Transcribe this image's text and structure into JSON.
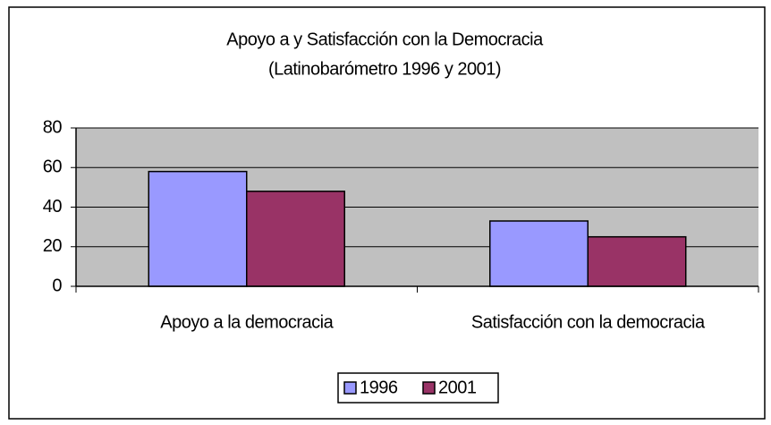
{
  "chart_data": {
    "type": "bar",
    "title": "Apoyo a y Satisfacción con la Democracia",
    "subtitle": "(Latinobarómetro 1996 y 2001)",
    "categories": [
      "Apoyo a la democracia",
      "Satisfacción con la democracia"
    ],
    "series": [
      {
        "name": "1996",
        "color": "#9999ff",
        "values": [
          58,
          33
        ]
      },
      {
        "name": "2001",
        "color": "#993366",
        "values": [
          48,
          25
        ]
      }
    ],
    "ylim": [
      0,
      80
    ],
    "yticks": [
      0,
      20,
      40,
      60,
      80
    ],
    "grid": true,
    "legend": "bottom"
  }
}
